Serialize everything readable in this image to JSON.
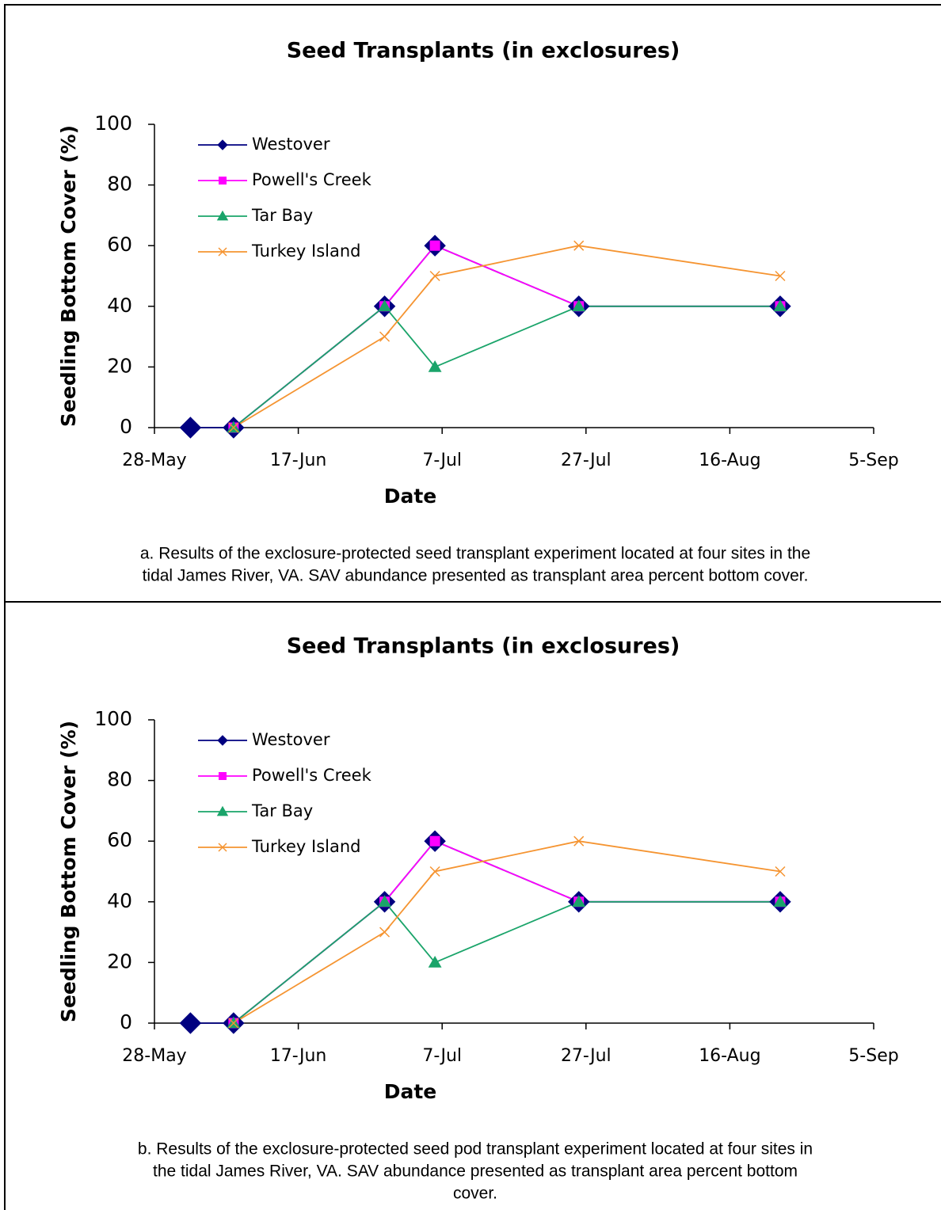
{
  "chart_data": [
    {
      "type": "line",
      "title": "Seed Transplants (in exclosures)",
      "x_label": "Date",
      "y_label": "Seedling Bottom Cover (%)",
      "caption": [
        "a. Results of the exclosure-protected seed transplant experiment located at four sites in the",
        "tidal James River, VA. SAV abundance presented as transplant area percent bottom cover."
      ],
      "x": [
        "2-Jun",
        "8-Jun",
        "29-Jun",
        "6-Jul",
        "26-Jul",
        "23-Aug"
      ],
      "xlim": [
        "28-May",
        "5-Sep"
      ],
      "xticks": [
        "28-May",
        "17-Jun",
        "7-Jul",
        "27-Jul",
        "16-Aug",
        "5-Sep"
      ],
      "ylim": [
        0,
        100
      ],
      "yticks": [
        0,
        20,
        40,
        60,
        80,
        100
      ],
      "grid": false,
      "legend": "top-left",
      "series": [
        {
          "name": "Westover",
          "color": "#000080",
          "marker": "diamond",
          "values": [
            0,
            0,
            40,
            60,
            40,
            40
          ]
        },
        {
          "name": "Powell's Creek",
          "color": "#ff00ff",
          "marker": "square",
          "values": [
            null,
            0,
            40,
            60,
            40,
            40
          ]
        },
        {
          "name": "Tar Bay",
          "color": "#1aa46a",
          "marker": "triangle",
          "values": [
            null,
            0,
            40,
            20,
            40,
            40
          ]
        },
        {
          "name": "Turkey Island",
          "color": "#f59431",
          "marker": "x",
          "values": [
            null,
            0,
            30,
            50,
            60,
            50
          ]
        }
      ]
    },
    {
      "type": "line",
      "title": "Seed Transplants (in exclosures)",
      "x_label": "Date",
      "y_label": "Seedling Bottom Cover (%)",
      "caption": [
        "b. Results of the exclosure-protected seed pod transplant experiment located at four sites in",
        "the tidal James River, VA. SAV abundance presented as transplant area percent bottom",
        "cover."
      ],
      "x": [
        "2-Jun",
        "8-Jun",
        "29-Jun",
        "6-Jul",
        "26-Jul",
        "23-Aug"
      ],
      "xlim": [
        "28-May",
        "5-Sep"
      ],
      "xticks": [
        "28-May",
        "17-Jun",
        "7-Jul",
        "27-Jul",
        "16-Aug",
        "5-Sep"
      ],
      "ylim": [
        0,
        100
      ],
      "yticks": [
        0,
        20,
        40,
        60,
        80,
        100
      ],
      "grid": false,
      "legend": "top-left",
      "series": [
        {
          "name": "Westover",
          "color": "#000080",
          "marker": "diamond",
          "values": [
            0,
            0,
            40,
            60,
            40,
            40
          ]
        },
        {
          "name": "Powell's Creek",
          "color": "#ff00ff",
          "marker": "square",
          "values": [
            null,
            0,
            40,
            60,
            40,
            40
          ]
        },
        {
          "name": "Tar Bay",
          "color": "#1aa46a",
          "marker": "triangle",
          "values": [
            null,
            0,
            40,
            20,
            40,
            40
          ]
        },
        {
          "name": "Turkey Island",
          "color": "#f59431",
          "marker": "x",
          "values": [
            null,
            0,
            30,
            50,
            60,
            50
          ]
        }
      ]
    }
  ]
}
